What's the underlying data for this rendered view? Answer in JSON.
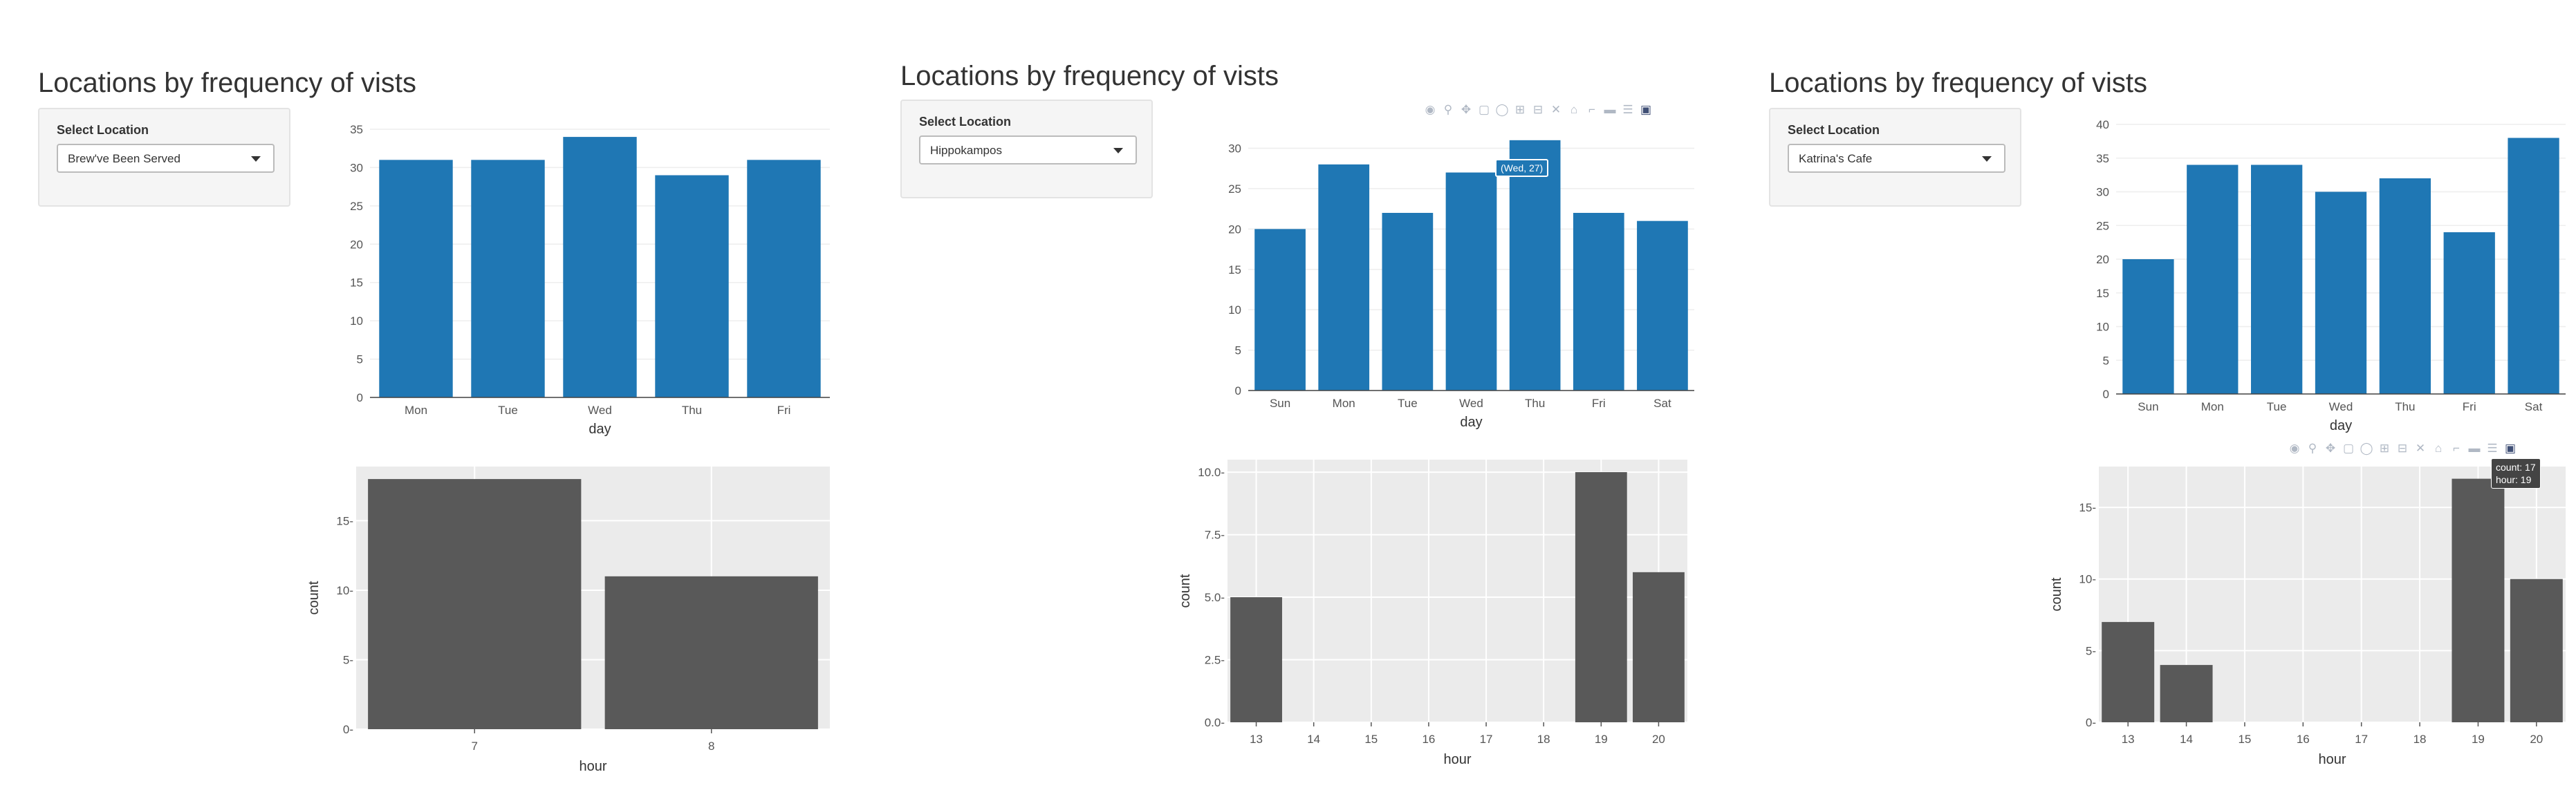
{
  "panels": [
    {
      "title": "Locations by frequency of vists",
      "select_label": "Select Location",
      "selected_location": "Brew've Been Served"
    },
    {
      "title": "Locations by frequency of vists",
      "select_label": "Select Location",
      "selected_location": "Hippokampos",
      "day_tooltip": "(Wed, 27)"
    },
    {
      "title": "Locations by frequency of vists",
      "select_label": "Select Location",
      "selected_location": "Katrina's Cafe",
      "hour_tooltip": {
        "count": "count: 17",
        "hour": "hour: 19"
      }
    }
  ],
  "modebar_icons": [
    "camera-icon",
    "zoom-icon",
    "pan-icon",
    "box-select-icon",
    "lasso-icon",
    "zoom-in-icon",
    "zoom-out-icon",
    "autoscale-icon",
    "reset-axes-icon",
    "spike-lines-icon",
    "hover-closest-icon",
    "hover-compare-icon",
    "plotly-logo-icon"
  ],
  "colors": {
    "day_bar": "#1f77b4",
    "hour_bar": "#595959",
    "hour_panel_bg": "#ebebeb"
  },
  "chart_data": [
    {
      "type": "bar",
      "panel": 1,
      "chart": "day",
      "categories": [
        "Mon",
        "Tue",
        "Wed",
        "Thu",
        "Fri"
      ],
      "values": [
        31,
        31,
        34,
        29,
        31
      ],
      "xlabel": "day",
      "ylabel": "",
      "ylim": [
        0,
        35
      ],
      "yticks": [
        0,
        5,
        10,
        15,
        20,
        25,
        30,
        35
      ],
      "grid": true
    },
    {
      "type": "bar",
      "panel": 1,
      "chart": "hour",
      "categories": [
        "7",
        "8"
      ],
      "values": [
        18,
        11
      ],
      "xlabel": "hour",
      "ylabel": "count",
      "ylim": [
        0,
        18.9
      ],
      "yticks": [
        0,
        5,
        10,
        15
      ],
      "grid": true
    },
    {
      "type": "bar",
      "panel": 2,
      "chart": "day",
      "categories": [
        "Sun",
        "Mon",
        "Tue",
        "Wed",
        "Thu",
        "Fri",
        "Sat"
      ],
      "values": [
        20,
        28,
        22,
        27,
        31,
        22,
        21
      ],
      "xlabel": "day",
      "ylabel": "",
      "ylim": [
        0,
        31.5
      ],
      "yticks": [
        0,
        5,
        10,
        15,
        20,
        25,
        30
      ],
      "grid": true
    },
    {
      "type": "bar",
      "panel": 2,
      "chart": "hour",
      "categories": [
        "13",
        "14",
        "15",
        "16",
        "17",
        "18",
        "19",
        "20"
      ],
      "values": [
        5,
        0,
        0,
        0,
        0,
        0,
        10,
        6
      ],
      "xlabel": "hour",
      "ylabel": "count",
      "ylim": [
        0,
        10.5
      ],
      "yticks": [
        0,
        2.5,
        5,
        7.5,
        10
      ],
      "ytick_labels": [
        "0.0",
        "2.5",
        "5.0",
        "7.5",
        "10.0"
      ],
      "grid": true
    },
    {
      "type": "bar",
      "panel": 3,
      "chart": "day",
      "categories": [
        "Sun",
        "Mon",
        "Tue",
        "Wed",
        "Thu",
        "Fri",
        "Sat"
      ],
      "values": [
        20,
        34,
        34,
        30,
        32,
        24,
        38
      ],
      "xlabel": "day",
      "ylabel": "",
      "ylim": [
        0,
        40
      ],
      "yticks": [
        0,
        5,
        10,
        15,
        20,
        25,
        30,
        35,
        40
      ],
      "grid": true
    },
    {
      "type": "bar",
      "panel": 3,
      "chart": "hour",
      "categories": [
        "13",
        "14",
        "15",
        "16",
        "17",
        "18",
        "19",
        "20"
      ],
      "values": [
        7,
        4,
        0,
        0,
        0,
        0,
        17,
        10
      ],
      "xlabel": "hour",
      "ylabel": "count",
      "ylim": [
        0,
        17.85
      ],
      "yticks": [
        0,
        5,
        10,
        15
      ],
      "grid": true
    }
  ]
}
